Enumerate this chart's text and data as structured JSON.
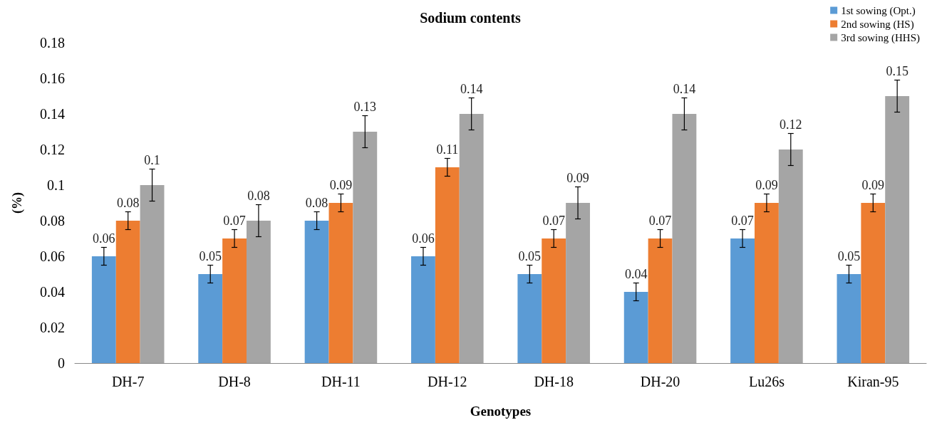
{
  "chart_data": {
    "type": "bar",
    "title": "Sodium contents",
    "xlabel": "Genotypes",
    "ylabel": "(%)",
    "categories": [
      "DH-7",
      "DH-8",
      "DH-11",
      "DH-12",
      "DH-18",
      "DH-20",
      "Lu26s",
      "Kiran-95"
    ],
    "series": [
      {
        "name": "1st sowing (Opt.)",
        "color": "#5b9bd5",
        "values": [
          0.06,
          0.05,
          0.08,
          0.06,
          0.05,
          0.04,
          0.07,
          0.05
        ],
        "errors": [
          0.005,
          0.005,
          0.005,
          0.005,
          0.005,
          0.005,
          0.005,
          0.005
        ]
      },
      {
        "name": "2nd sowing (HS)",
        "color": "#ed7d31",
        "values": [
          0.08,
          0.07,
          0.09,
          0.11,
          0.07,
          0.07,
          0.09,
          0.09
        ],
        "errors": [
          0.005,
          0.005,
          0.005,
          0.005,
          0.005,
          0.005,
          0.005,
          0.005
        ]
      },
      {
        "name": "3rd sowing (HHS)",
        "color": "#a5a5a5",
        "values": [
          0.1,
          0.08,
          0.13,
          0.14,
          0.09,
          0.14,
          0.12,
          0.15
        ],
        "errors": [
          0.009,
          0.009,
          0.009,
          0.009,
          0.009,
          0.009,
          0.009,
          0.009
        ]
      }
    ],
    "ylim": [
      0,
      0.18
    ],
    "yticks": [
      0,
      0.02,
      0.04,
      0.06,
      0.08,
      0.1,
      0.12,
      0.14,
      0.16,
      0.18
    ],
    "grid": false,
    "legend": "top right",
    "data_labels": true
  }
}
